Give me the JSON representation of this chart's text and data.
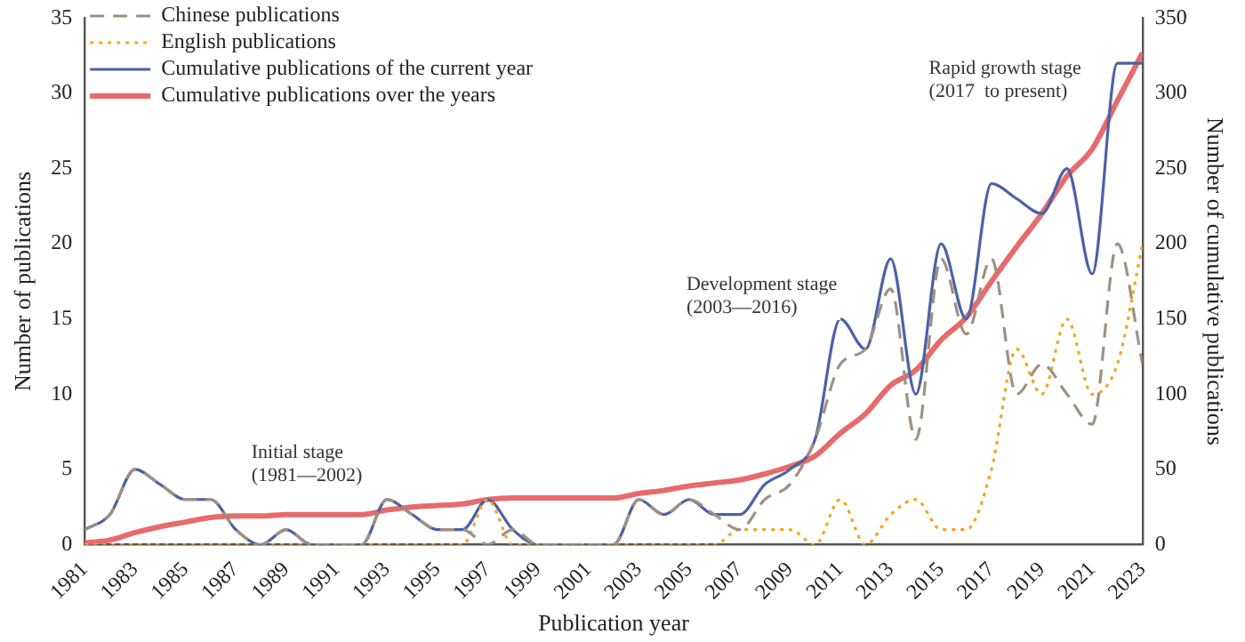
{
  "chart_data": {
    "type": "line",
    "xlabel": "Publication year",
    "ylabel": "Number of publications",
    "y2label": "Number of cumulative publications",
    "x": [
      1981,
      1982,
      1983,
      1984,
      1985,
      1986,
      1987,
      1988,
      1989,
      1990,
      1991,
      1992,
      1993,
      1994,
      1995,
      1996,
      1997,
      1998,
      1999,
      2000,
      2001,
      2002,
      2003,
      2004,
      2005,
      2006,
      2007,
      2008,
      2009,
      2010,
      2011,
      2012,
      2013,
      2014,
      2015,
      2016,
      2017,
      2018,
      2019,
      2020,
      2021,
      2022,
      2023
    ],
    "xlim": [
      1981,
      2023
    ],
    "xticks": [
      1981,
      1983,
      1985,
      1987,
      1989,
      1991,
      1993,
      1995,
      1997,
      1999,
      2001,
      2003,
      2005,
      2007,
      2009,
      2011,
      2013,
      2015,
      2017,
      2019,
      2021,
      2023
    ],
    "ylim": [
      0,
      35
    ],
    "yticks": [
      0,
      5,
      10,
      15,
      20,
      25,
      30,
      35
    ],
    "y2lim": [
      0,
      350
    ],
    "y2ticks": [
      0,
      50,
      100,
      150,
      200,
      250,
      300,
      350
    ],
    "grid": false,
    "legend": "top left",
    "marker": "none",
    "series": [
      {
        "name": "Chinese publications",
        "color": "#a09080",
        "line_style": "dashed",
        "values": [
          1,
          2,
          5,
          4,
          3,
          3,
          1,
          0,
          1,
          0,
          0,
          0,
          3,
          2,
          1,
          1,
          0,
          1,
          0,
          0,
          0,
          0,
          3,
          2,
          3,
          2,
          1,
          3,
          4,
          7,
          12,
          13,
          17,
          7,
          19,
          14,
          19,
          10,
          12,
          10,
          8,
          20,
          12
        ]
      },
      {
        "name": "English publications",
        "color": "#f5a623",
        "line_style": "dotted",
        "values": [
          0,
          0,
          0,
          0,
          0,
          0,
          0,
          0,
          0,
          0,
          0,
          0,
          0,
          0,
          0,
          0,
          3,
          0,
          0,
          0,
          0,
          0,
          0,
          0,
          0,
          0,
          1,
          1,
          1,
          0,
          3,
          0,
          2,
          3,
          1,
          1,
          5,
          13,
          10,
          15,
          10,
          12,
          20
        ]
      },
      {
        "name": "Cumulative publications of the current year",
        "color": "#4a62a8",
        "line_style": "solid",
        "values": [
          1,
          2,
          5,
          4,
          3,
          3,
          1,
          0,
          1,
          0,
          0,
          0,
          3,
          2,
          1,
          1,
          3,
          1,
          0,
          0,
          0,
          0,
          3,
          2,
          3,
          2,
          2,
          4,
          5,
          7,
          15,
          13,
          19,
          10,
          20,
          15,
          24,
          23,
          22,
          25,
          18,
          32,
          32
        ]
      },
      {
        "name": "Cumulative publications over the years",
        "color": "#e86a6a",
        "line_style": "solid",
        "axis": "y2",
        "values": [
          1,
          3,
          8,
          12,
          15,
          18,
          19,
          19,
          20,
          20,
          20,
          20,
          23,
          25,
          26,
          27,
          30,
          31,
          31,
          31,
          31,
          31,
          34,
          36,
          39,
          41,
          43,
          47,
          52,
          59,
          74,
          87,
          106,
          116,
          136,
          151,
          175,
          198,
          220,
          245,
          263,
          295,
          327
        ]
      }
    ],
    "annotations": [
      "Initial stage\n(1981—2002)",
      "Development stage\n(2003—2016)",
      "Rapid growth stage\n(2017  to present)"
    ]
  }
}
